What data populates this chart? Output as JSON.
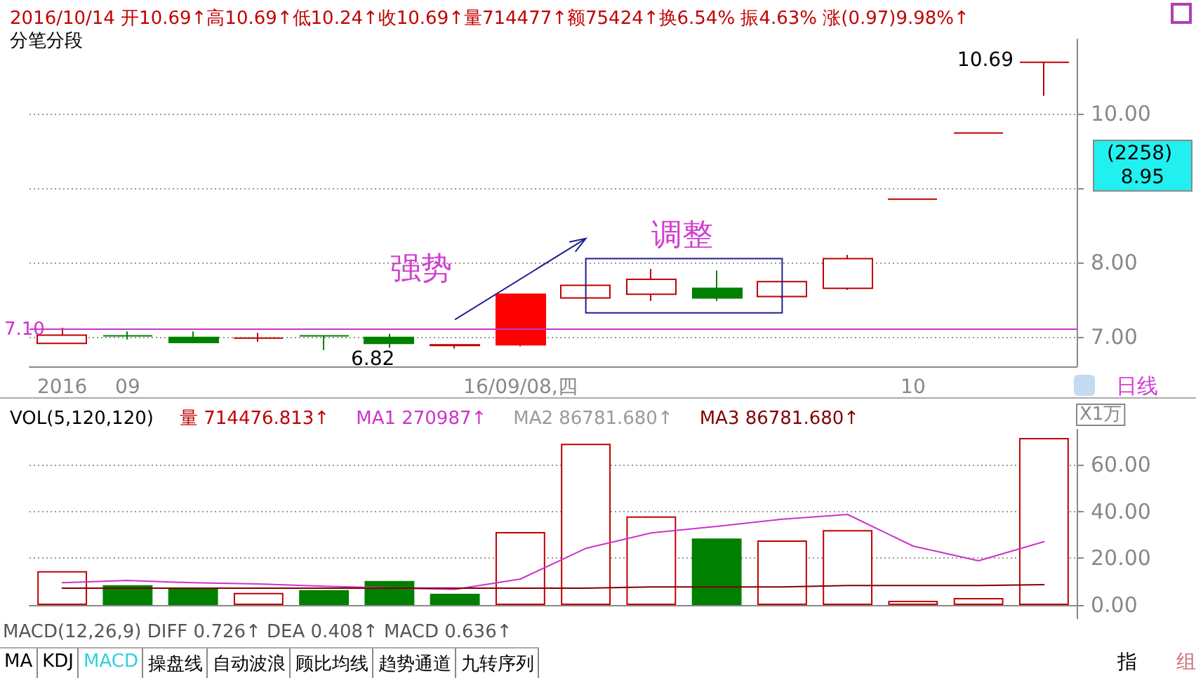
{
  "chart_data": [
    {
      "type": "candlestick",
      "title": "2016/10/14 开10.69↑高10.69↑低10.24↑收10.69↑量714477↑额75424↑换6.54% 振4.63% 涨(0.97)9.98%↑",
      "subtitle": "分笔分段",
      "categories": [
        "2016",
        "09",
        null,
        null,
        null,
        null,
        null,
        "16/09/08,四",
        null,
        null,
        null,
        null,
        null,
        "10",
        null,
        null
      ],
      "color": "#c00000",
      "colors": [
        "#c00000",
        "#008000",
        "#008000",
        "#c00000",
        "#008000",
        "#008000",
        "#c00000",
        "#ff0000",
        "#c00000",
        "#c00000",
        "#008000",
        "#c00000",
        "#c00000",
        "#c00000",
        "#c00000",
        "#c00000"
      ],
      "ohlc": [
        [
          6.91,
          7.12,
          6.91,
          7.02
        ],
        [
          7.01,
          7.07,
          6.96,
          7.01
        ],
        [
          6.99,
          7.07,
          6.92,
          6.92
        ],
        [
          6.98,
          7.05,
          6.93,
          6.98
        ],
        [
          7.01,
          7.01,
          6.82,
          7.01
        ],
        [
          6.99,
          7.04,
          6.85,
          6.91
        ],
        [
          6.88,
          6.9,
          6.84,
          6.89
        ],
        [
          6.89,
          7.57,
          6.87,
          7.57
        ],
        [
          7.52,
          7.7,
          7.5,
          7.69
        ],
        [
          7.57,
          7.91,
          7.48,
          7.77
        ],
        [
          7.65,
          7.89,
          7.48,
          7.52
        ],
        [
          7.54,
          7.75,
          7.52,
          7.74
        ],
        [
          7.65,
          8.1,
          7.63,
          8.05
        ],
        [
          8.85,
          8.85,
          8.85,
          8.85
        ],
        [
          9.74,
          9.74,
          9.74,
          9.74
        ],
        [
          10.69,
          10.69,
          10.24,
          10.69
        ]
      ],
      "ylim": [
        6.6,
        11
      ],
      "yticks": [
        {
          "value": 7,
          "label": "7.00"
        },
        {
          "value": 8,
          "label": "8.00"
        },
        {
          "value": 9,
          "label": null
        },
        {
          "value": 10,
          "label": "10.00"
        }
      ],
      "grid": "y",
      "ref_lines": [
        {
          "axis": "y",
          "value": 7.1,
          "label": "7.10",
          "color": "#cc33cc"
        }
      ],
      "annotations": [
        "强势",
        "调整",
        "6.82",
        "10.69",
        "(2258) 8.95",
        "日线"
      ]
    },
    {
      "type": "bar",
      "title": "VOL(5,120,120)",
      "ylabel": "X1万",
      "categories": [
        null,
        null,
        null,
        null,
        null,
        null,
        null,
        null,
        null,
        null,
        null,
        null,
        null,
        null,
        null,
        null
      ],
      "ylim": [
        -6,
        75
      ],
      "yticks": [
        {
          "value": 0,
          "label": "0.00"
        },
        {
          "value": 20,
          "label": "20.00"
        },
        {
          "value": 40,
          "label": "40.00"
        },
        {
          "value": 60,
          "label": "60.00"
        }
      ],
      "grid": "y",
      "legend": "top left",
      "tick_labels": "y",
      "series": [
        {
          "name": "量 714476.813↑",
          "color": "#c00000",
          "colors": [
            "#c00000",
            "#008000",
            "#008000",
            "#c00000",
            "#008000",
            "#008000",
            "#008000",
            "#c00000",
            "#c00000",
            "#c00000",
            "#008000",
            "#c00000",
            "#c00000",
            "#c00000",
            "#c00000",
            "#c00000"
          ],
          "values": [
            14.5,
            8.5,
            7.0,
            5.2,
            6.4,
            10.3,
            4.8,
            31.2,
            68.9,
            37.9,
            28.4,
            27.6,
            32.0,
            1.8,
            3.0,
            71.4
          ]
        },
        {
          "name": "MA1 270987↑",
          "type": "line",
          "color": "#cc33cc",
          "values": [
            9.5,
            10.5,
            9.5,
            9.0,
            8.0,
            7.3,
            6.7,
            11.1,
            24.2,
            30.8,
            33.6,
            36.7,
            38.7,
            25.2,
            18.9,
            27.1
          ]
        },
        {
          "name": "MA2 86781.680↑",
          "type": "line",
          "color": "#999999",
          "values": [
            null,
            null,
            null,
            null,
            null,
            null,
            null,
            null,
            null,
            null,
            null,
            null,
            null,
            null,
            null,
            null
          ]
        },
        {
          "name": "MA3 86781.680↑",
          "type": "line",
          "color": "#800000",
          "values": [
            7.2,
            7.2,
            7.2,
            7.2,
            7.2,
            7.2,
            7.2,
            7.2,
            7.2,
            7.7,
            7.7,
            7.7,
            8.3,
            8.3,
            8.3,
            8.7
          ]
        }
      ],
      "annotations": [
        "MACD(12,26,9) DIFF 0.726↑ DEA 0.408↑ MACD 0.636↑",
        "MA",
        "KDJ",
        "MACD",
        "操盘线",
        "自动波浪",
        "顾比均线",
        "趋势通道",
        "九转序列",
        "指",
        "组"
      ]
    }
  ]
}
